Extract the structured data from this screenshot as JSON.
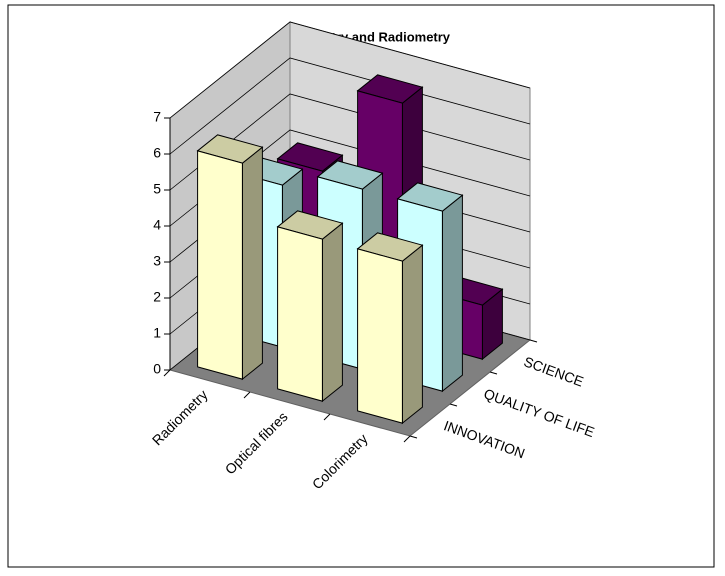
{
  "chart_data": {
    "type": "bar3d",
    "title": "Photometry and Radiometry",
    "categories": [
      "Radiometry",
      "Optical fibres",
      "Colorimetry"
    ],
    "series": [
      {
        "name": "INNOVATION",
        "color": "#ffffcc",
        "values": [
          6,
          4.5,
          4.5
        ]
      },
      {
        "name": "QUALITY OF LIFE",
        "color": "#ccffff",
        "values": [
          4.5,
          5,
          5
        ]
      },
      {
        "name": "SCIENCE",
        "color": "#660066",
        "values": [
          4,
          6.5,
          1.5
        ]
      }
    ],
    "ylim": [
      0,
      7
    ],
    "yticks": [
      0,
      1,
      2,
      3,
      4,
      5,
      6,
      7
    ],
    "grid": true
  }
}
